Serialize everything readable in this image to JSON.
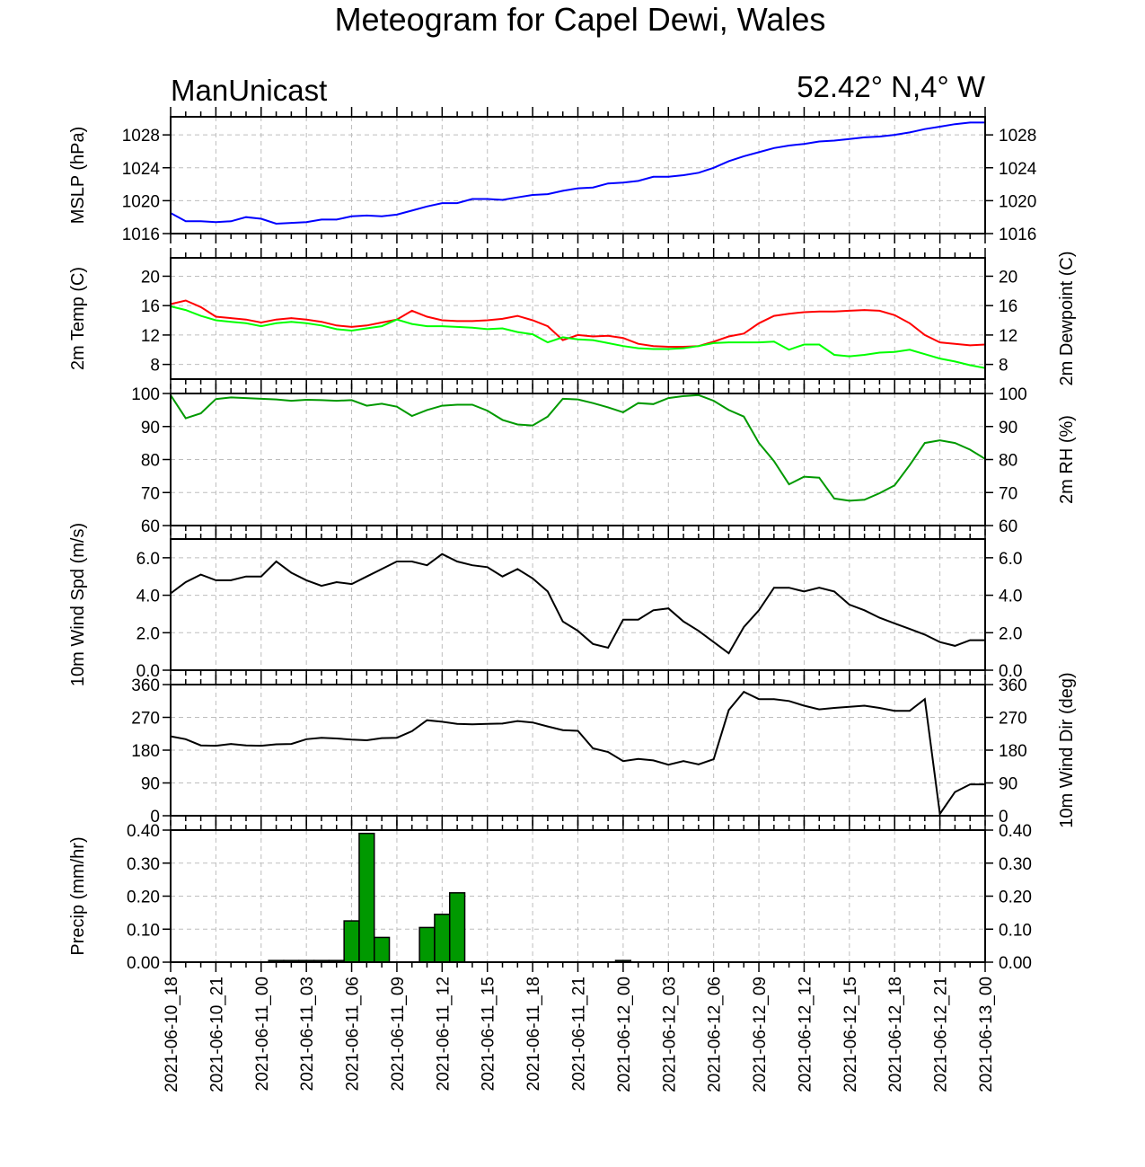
{
  "title": "Meteogram for Capel Dewi, Wales",
  "model": "ManUnicast",
  "location": "52.42° N,4° W",
  "colors": {
    "mslp": "#0000ff",
    "temp": "#ff0000",
    "dewpoint": "#00ff00",
    "rh": "#009900",
    "wind": "#000000",
    "precip_fill": "#009900",
    "grid": "#bdbdbd"
  },
  "x_labels": [
    "2021-06-10_18",
    "2021-06-10_21",
    "2021-06-11_00",
    "2021-06-11_03",
    "2021-06-11_06",
    "2021-06-11_09",
    "2021-06-11_12",
    "2021-06-11_15",
    "2021-06-11_18",
    "2021-06-11_21",
    "2021-06-12_00",
    "2021-06-12_03",
    "2021-06-12_06",
    "2021-06-12_09",
    "2021-06-12_12",
    "2021-06-12_15",
    "2021-06-12_18",
    "2021-06-12_21",
    "2021-06-13_00"
  ],
  "chart_data": [
    {
      "id": "mslp",
      "type": "line",
      "ylabel_left": "MSLP (hPa)",
      "ylabel_right": "",
      "ylim": [
        1016,
        1030.2
      ],
      "ticks": [
        1016,
        1020,
        1024,
        1028
      ],
      "tick_labels": [
        "1016",
        "1020",
        "1024",
        "1028"
      ],
      "right_ticks": true,
      "x_hours": [
        0,
        1,
        2,
        3,
        4,
        5,
        6,
        7,
        8,
        9,
        10,
        11,
        12,
        13,
        14,
        15,
        16,
        17,
        18,
        19,
        20,
        21,
        22,
        23,
        24,
        25,
        26,
        27,
        28,
        29,
        30,
        31,
        32,
        33,
        34,
        35,
        36,
        37,
        38,
        39,
        40,
        41,
        42,
        43,
        44,
        45,
        46,
        47,
        48,
        49,
        50,
        51,
        52,
        53,
        54
      ],
      "series": [
        {
          "name": "",
          "color_key": "mslp",
          "values": [
            1018.5,
            1017.5,
            1017.5,
            1017.4,
            1017.5,
            1018.0,
            1017.8,
            1017.2,
            1017.3,
            1017.4,
            1017.7,
            1017.7,
            1018.1,
            1018.2,
            1018.1,
            1018.3,
            1018.8,
            1019.3,
            1019.7,
            1019.7,
            1020.2,
            1020.2,
            1020.1,
            1020.4,
            1020.7,
            1020.8,
            1021.2,
            1021.5,
            1021.6,
            1022.1,
            1022.2,
            1022.4,
            1022.9,
            1022.9,
            1023.1,
            1023.4,
            1024.0,
            1024.8,
            1025.4,
            1025.9,
            1026.4,
            1026.7,
            1026.9,
            1027.2,
            1027.3,
            1027.5,
            1027.7,
            1027.8,
            1028.0,
            1028.3,
            1028.7,
            1029.0,
            1029.3,
            1029.5,
            1029.5
          ]
        }
      ]
    },
    {
      "id": "temp",
      "type": "line",
      "ylabel_left": "2m Temp (C)",
      "ylabel_right": "2m Dewpoint (C)",
      "ylim": [
        6,
        22.5
      ],
      "ticks": [
        8,
        12,
        16,
        20
      ],
      "tick_labels": [
        "8",
        "12",
        "16",
        "20"
      ],
      "right_ticks": true,
      "x_hours": [
        0,
        1,
        2,
        3,
        4,
        5,
        6,
        7,
        8,
        9,
        10,
        11,
        12,
        13,
        14,
        15,
        16,
        17,
        18,
        19,
        20,
        21,
        22,
        23,
        24,
        25,
        26,
        27,
        28,
        29,
        30,
        31,
        32,
        33,
        34,
        35,
        36,
        37,
        38,
        39,
        40,
        41,
        42,
        43,
        44,
        45,
        46,
        47,
        48,
        49,
        50,
        51,
        52,
        53,
        54
      ],
      "series": [
        {
          "name": "",
          "color_key": "temp",
          "values": [
            16.2,
            16.7,
            15.8,
            14.5,
            14.3,
            14.1,
            13.7,
            14.1,
            14.3,
            14.1,
            13.8,
            13.3,
            13.1,
            13.3,
            13.7,
            14.1,
            15.3,
            14.5,
            14.0,
            13.9,
            13.9,
            14.0,
            14.2,
            14.6,
            14.0,
            13.2,
            11.3,
            12.0,
            11.8,
            11.9,
            11.6,
            10.8,
            10.5,
            10.4,
            10.4,
            10.5,
            11.1,
            11.8,
            12.2,
            13.6,
            14.6,
            14.9,
            15.1,
            15.2,
            15.2,
            15.3,
            15.4,
            15.3,
            14.7,
            13.6,
            12.0,
            11.0,
            10.8,
            10.6,
            10.7
          ]
        },
        {
          "name": "",
          "color_key": "dewpoint",
          "values": [
            15.9,
            15.4,
            14.6,
            14.0,
            13.8,
            13.6,
            13.2,
            13.6,
            13.8,
            13.6,
            13.3,
            12.8,
            12.6,
            12.9,
            13.2,
            14.1,
            13.5,
            13.2,
            13.2,
            13.1,
            13.0,
            12.8,
            12.9,
            12.4,
            12.1,
            11.0,
            11.7,
            11.4,
            11.3,
            10.9,
            10.5,
            10.2,
            10.1,
            10.1,
            10.2,
            10.5,
            10.9,
            11.0,
            11.0,
            11.0,
            11.1,
            10.0,
            10.7,
            10.7,
            9.3,
            9.1,
            9.3,
            9.6,
            9.7,
            10.0,
            9.4,
            8.8,
            8.4,
            7.9,
            7.5
          ]
        }
      ]
    },
    {
      "id": "rh",
      "type": "line",
      "ylabel_left": "",
      "ylabel_right": "2m RH (%)",
      "ylim": [
        60,
        100
      ],
      "ticks": [
        60,
        70,
        80,
        90,
        100
      ],
      "tick_labels": [
        "60",
        "70",
        "80",
        "90",
        "100"
      ],
      "right_ticks": true,
      "x_hours": [
        0,
        1,
        2,
        3,
        4,
        5,
        6,
        7,
        8,
        9,
        10,
        11,
        12,
        13,
        14,
        15,
        16,
        17,
        18,
        19,
        20,
        21,
        22,
        23,
        24,
        25,
        26,
        27,
        28,
        29,
        30,
        31,
        32,
        33,
        34,
        35,
        36,
        37,
        38,
        39,
        40,
        41,
        42,
        43,
        44,
        45,
        46,
        47,
        48,
        49,
        50,
        51,
        52,
        53,
        54
      ],
      "series": [
        {
          "name": "",
          "color_key": "rh",
          "values": [
            99.5,
            92.5,
            94.0,
            98.3,
            98.8,
            98.6,
            98.4,
            98.2,
            97.8,
            98.1,
            98.0,
            97.8,
            98.0,
            96.3,
            96.9,
            96.0,
            93.2,
            95.0,
            96.3,
            96.6,
            96.6,
            94.8,
            92.0,
            90.6,
            90.3,
            93.0,
            98.4,
            98.2,
            97.1,
            95.8,
            94.3,
            97.1,
            96.8,
            98.6,
            99.2,
            99.5,
            97.8,
            95.0,
            93.0,
            85.0,
            79.5,
            72.5,
            74.8,
            74.5,
            68.2,
            67.5,
            67.8,
            69.8,
            72.2,
            78.3,
            85.0,
            85.8,
            85.0,
            83.0,
            80.2
          ]
        }
      ]
    },
    {
      "id": "wind_spd",
      "type": "line",
      "ylabel_left": "10m Wind Spd (m/s)",
      "ylabel_right": "",
      "ylim": [
        0,
        7.0
      ],
      "ticks": [
        0,
        2,
        4,
        6
      ],
      "tick_labels": [
        "0.0",
        "2.0",
        "4.0",
        "6.0"
      ],
      "right_ticks": true,
      "x_hours": [
        0,
        1,
        2,
        3,
        4,
        5,
        6,
        7,
        8,
        9,
        10,
        11,
        12,
        13,
        14,
        15,
        16,
        17,
        18,
        19,
        20,
        21,
        22,
        23,
        24,
        25,
        26,
        27,
        28,
        29,
        30,
        31,
        32,
        33,
        34,
        35,
        36,
        37,
        38,
        39,
        40,
        41,
        42,
        43,
        44,
        45,
        46,
        47,
        48,
        49,
        50,
        51,
        52,
        53,
        54
      ],
      "series": [
        {
          "name": "",
          "color_key": "wind",
          "values": [
            4.1,
            4.7,
            5.1,
            4.8,
            4.8,
            5.0,
            5.0,
            5.8,
            5.2,
            4.8,
            4.5,
            4.7,
            4.6,
            5.0,
            5.4,
            5.8,
            5.8,
            5.6,
            6.2,
            5.8,
            5.6,
            5.5,
            5.0,
            5.4,
            4.9,
            4.2,
            2.6,
            2.1,
            1.4,
            1.2,
            2.7,
            2.7,
            3.2,
            3.3,
            2.6,
            2.1,
            1.5,
            0.9,
            2.3,
            3.2,
            4.4,
            4.4,
            4.2,
            4.4,
            4.2,
            3.5,
            3.2,
            2.8,
            2.5,
            2.2,
            1.9,
            1.5,
            1.3,
            1.6,
            1.6
          ]
        }
      ]
    },
    {
      "id": "wind_dir",
      "type": "line",
      "ylabel_left": "",
      "ylabel_right": "10m Wind Dir (deg)",
      "ylim": [
        0,
        360
      ],
      "ticks": [
        0,
        90,
        180,
        270,
        360
      ],
      "tick_labels": [
        "0",
        "90",
        "180",
        "270",
        "360"
      ],
      "right_ticks": true,
      "x_hours": [
        0,
        1,
        2,
        3,
        4,
        5,
        6,
        7,
        8,
        9,
        10,
        11,
        12,
        13,
        14,
        15,
        16,
        17,
        18,
        19,
        20,
        21,
        22,
        23,
        24,
        25,
        26,
        27,
        28,
        29,
        30,
        31,
        32,
        33,
        34,
        35,
        36,
        37,
        38,
        39,
        40,
        41,
        42,
        43,
        44,
        45,
        46,
        47,
        48,
        49,
        50,
        51,
        52,
        53,
        54
      ],
      "series": [
        {
          "name": "",
          "color_key": "wind",
          "values": [
            218,
            210,
            193,
            192,
            197,
            193,
            192,
            196,
            197,
            210,
            214,
            212,
            209,
            207,
            213,
            214,
            232,
            262,
            258,
            252,
            251,
            252,
            253,
            260,
            256,
            245,
            235,
            233,
            185,
            175,
            150,
            156,
            152,
            140,
            150,
            141,
            155,
            290,
            340,
            320,
            320,
            315,
            302,
            292,
            296,
            299,
            302,
            296,
            288,
            288,
            320,
            5,
            65,
            86,
            86
          ]
        }
      ]
    },
    {
      "id": "precip",
      "type": "bar",
      "ylabel_left": "Precip (mm/hr)",
      "ylabel_right": "",
      "ylim": [
        0,
        0.4
      ],
      "ticks": [
        0,
        0.1,
        0.2,
        0.3,
        0.4
      ],
      "tick_labels": [
        "0.00",
        "0.10",
        "0.20",
        "0.30",
        "0.40"
      ],
      "right_ticks": true,
      "x_hours": [
        7,
        8,
        9,
        10,
        11,
        12,
        13,
        14,
        15,
        16,
        17,
        18,
        19,
        20,
        21,
        22,
        23,
        24,
        25,
        26,
        27,
        28,
        29,
        30
      ],
      "series": [
        {
          "name": "",
          "color_key": "precip_fill",
          "values": [
            0.005,
            0.005,
            0.005,
            0.005,
            0.005,
            0.125,
            0.39,
            0.075,
            0.0,
            0.0,
            0.105,
            0.145,
            0.21,
            0.0,
            0.0,
            0.0,
            0.0,
            0.0,
            0.0,
            0.0,
            0.0,
            0.0,
            0.0,
            0.005
          ]
        }
      ]
    }
  ]
}
